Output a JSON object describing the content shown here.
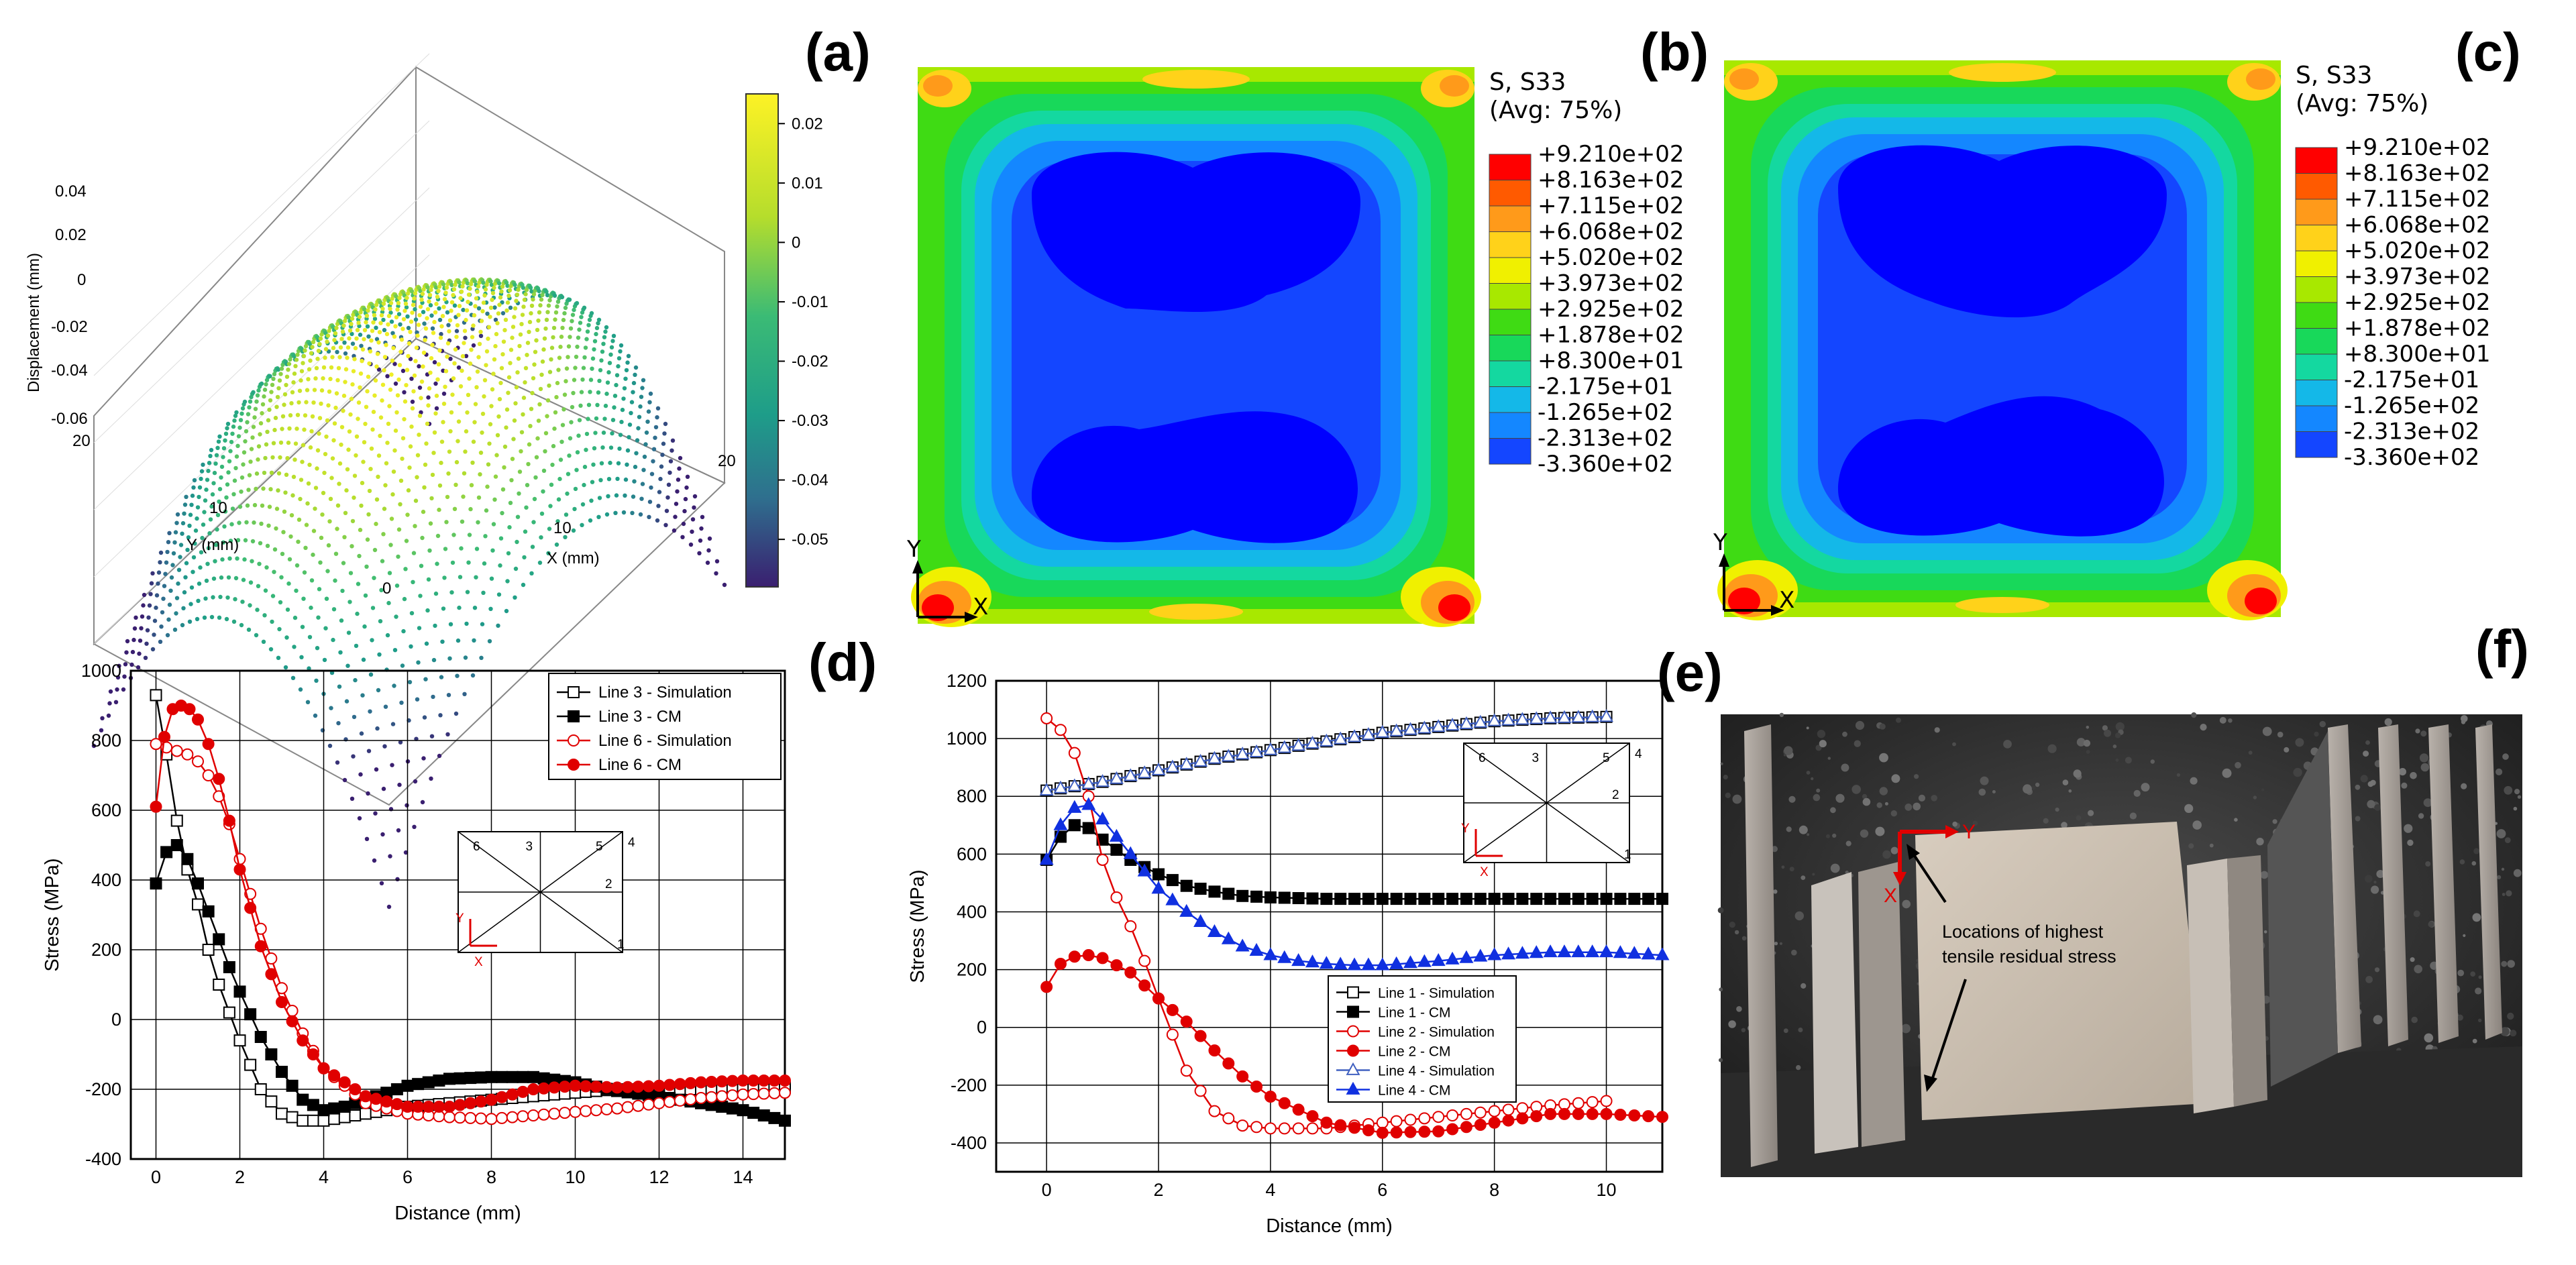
{
  "panel_labels": {
    "a": "(a)",
    "b": "(b)",
    "c": "(c)",
    "d": "(d)",
    "e": "(e)",
    "f": "(f)"
  },
  "chart_data": [
    {
      "id": "surface3d",
      "type": "scatter",
      "title": "",
      "zlabel": "Displacement (mm)",
      "xlabel": "X (mm)",
      "ylabel": "Y (mm)",
      "x_ticks": [
        "0",
        "10",
        "20"
      ],
      "y_ticks": [
        "0",
        "10",
        "20"
      ],
      "z_ticks": [
        "0.04",
        "0.02",
        "0",
        "-0.02",
        "-0.04",
        "-0.06"
      ],
      "zlim": [
        -0.06,
        0.04
      ],
      "colorbar_ticks": [
        "0.02",
        "0.01",
        "0",
        "-0.01",
        "-0.02",
        "-0.03",
        "-0.04",
        "-0.05"
      ],
      "colorbar_range": [
        -0.058,
        0.025
      ]
    },
    {
      "id": "contour-a",
      "type": "heatmap",
      "legend_title": [
        "S, S33",
        "(Avg: 75%)"
      ],
      "levels": [
        "+9.210e+02",
        "+8.163e+02",
        "+7.115e+02",
        "+6.068e+02",
        "+5.020e+02",
        "+3.973e+02",
        "+2.925e+02",
        "+1.878e+02",
        "+8.300e+01",
        "-2.175e+01",
        "-1.265e+02",
        "-2.313e+02",
        "-3.360e+02"
      ],
      "level_colors": [
        "#ff0000",
        "#ff5a00",
        "#ff9a1a",
        "#ffd21a",
        "#f0f000",
        "#a8e800",
        "#3fdb14",
        "#18d85a",
        "#14d8a0",
        "#14b8e8",
        "#1487ff",
        "#1446ff",
        "#0000ff"
      ],
      "axis_labels": {
        "x": "X",
        "y": "Y"
      }
    },
    {
      "id": "contour-b",
      "type": "heatmap",
      "legend_title": [
        "S, S33",
        "(Avg: 75%)"
      ],
      "levels": [
        "+9.210e+02",
        "+8.163e+02",
        "+7.115e+02",
        "+6.068e+02",
        "+5.020e+02",
        "+3.973e+02",
        "+2.925e+02",
        "+1.878e+02",
        "+8.300e+01",
        "-2.175e+01",
        "-1.265e+02",
        "-2.313e+02",
        "-3.360e+02"
      ],
      "level_colors": [
        "#ff0000",
        "#ff5a00",
        "#ff9a1a",
        "#ffd21a",
        "#f0f000",
        "#a8e800",
        "#3fdb14",
        "#18d85a",
        "#14d8a0",
        "#14b8e8",
        "#1487ff",
        "#1446ff",
        "#0000ff"
      ],
      "axis_labels": {
        "x": "X",
        "y": "Y"
      }
    },
    {
      "id": "line-chart-left",
      "type": "line",
      "xlabel": "Distance (mm)",
      "ylabel": "Stress (MPa)",
      "xlim": [
        -0.6,
        15
      ],
      "ylim": [
        -400,
        1000
      ],
      "x_ticks": [
        0,
        2,
        4,
        6,
        8,
        10,
        12,
        14
      ],
      "y_ticks": [
        -400,
        -200,
        0,
        200,
        400,
        600,
        800,
        1000
      ],
      "inset": {
        "lines": [
          "1",
          "2",
          "3",
          "4",
          "5",
          "6"
        ],
        "axes": {
          "x": "X",
          "y": "Y"
        }
      },
      "series": [
        {
          "name": "Line 3 - Simulation",
          "color": "#000000",
          "marker": "open-square",
          "x": [
            0,
            0.25,
            0.5,
            0.75,
            1,
            1.25,
            1.5,
            1.75,
            2,
            2.5,
            3,
            3.5,
            4,
            5,
            6,
            7,
            8,
            9,
            10,
            11,
            12,
            13,
            14,
            15
          ],
          "y": [
            930,
            760,
            570,
            430,
            330,
            200,
            100,
            20,
            -60,
            -200,
            -270,
            -290,
            -290,
            -270,
            -250,
            -240,
            -230,
            -220,
            -210,
            -200,
            -200,
            -200,
            -200,
            -195
          ]
        },
        {
          "name": "Line 3 - CM",
          "color": "#000000",
          "marker": "filled-square",
          "x": [
            0,
            0.25,
            0.5,
            0.75,
            1,
            1.25,
            1.5,
            1.75,
            2,
            2.5,
            3,
            3.5,
            4,
            4.5,
            5,
            6,
            7,
            8,
            9,
            10,
            11,
            12,
            13,
            14,
            15
          ],
          "y": [
            390,
            480,
            500,
            460,
            390,
            310,
            230,
            150,
            80,
            -50,
            -150,
            -230,
            -260,
            -250,
            -230,
            -190,
            -170,
            -165,
            -165,
            -180,
            -205,
            -220,
            -240,
            -260,
            -290
          ]
        },
        {
          "name": "Line 6 - Simulation",
          "color": "#e00000",
          "marker": "open-circle",
          "x": [
            0,
            0.25,
            0.5,
            0.75,
            1,
            1.25,
            1.5,
            1.75,
            2,
            2.5,
            3,
            3.5,
            4,
            5,
            6,
            7,
            8,
            9,
            10,
            11,
            12,
            13,
            14,
            15
          ],
          "y": [
            790,
            780,
            770,
            760,
            740,
            700,
            640,
            560,
            460,
            260,
            90,
            -40,
            -140,
            -240,
            -270,
            -280,
            -285,
            -275,
            -265,
            -255,
            -240,
            -225,
            -215,
            -210
          ]
        },
        {
          "name": "Line 6 - CM",
          "color": "#e00000",
          "marker": "filled-circle",
          "x": [
            0,
            0.2,
            0.4,
            0.6,
            0.8,
            1,
            1.25,
            1.5,
            1.75,
            2,
            2.5,
            3,
            3.5,
            4,
            5,
            6,
            7,
            8,
            9,
            10,
            11,
            12,
            13,
            14,
            15
          ],
          "y": [
            610,
            810,
            890,
            900,
            890,
            860,
            790,
            690,
            570,
            430,
            210,
            50,
            -60,
            -140,
            -220,
            -250,
            -250,
            -230,
            -200,
            -190,
            -195,
            -190,
            -180,
            -175,
            -175
          ]
        }
      ]
    },
    {
      "id": "line-chart-right",
      "type": "line",
      "xlabel": "Distance (mm)",
      "ylabel": "Stress (MPa)",
      "xlim": [
        -0.9,
        11
      ],
      "ylim": [
        -500,
        1200
      ],
      "x_ticks": [
        0,
        2,
        4,
        6,
        8,
        10
      ],
      "y_ticks": [
        -400,
        -200,
        0,
        200,
        400,
        600,
        800,
        1000,
        1200
      ],
      "inset": {
        "lines": [
          "1",
          "2",
          "3",
          "4",
          "5",
          "6"
        ],
        "axes": {
          "x": "X",
          "y": "Y"
        }
      },
      "series": [
        {
          "name": "Line 1 - Simulation",
          "color": "#000000",
          "marker": "open-square",
          "x": [
            0,
            1,
            2,
            3,
            4,
            5,
            6,
            7,
            8,
            9,
            10
          ],
          "y": [
            820,
            850,
            890,
            930,
            960,
            990,
            1020,
            1040,
            1060,
            1070,
            1075
          ]
        },
        {
          "name": "Line 1 - CM",
          "color": "#000000",
          "marker": "filled-square",
          "x": [
            0,
            0.25,
            0.5,
            0.75,
            1,
            1.5,
            2,
            2.5,
            3,
            3.5,
            4,
            5,
            6,
            7,
            8,
            9,
            10,
            11
          ],
          "y": [
            580,
            660,
            700,
            690,
            650,
            580,
            530,
            490,
            470,
            455,
            450,
            445,
            445,
            445,
            445,
            445,
            445,
            445
          ]
        },
        {
          "name": "Line 2 - Simulation",
          "color": "#e00000",
          "marker": "open-circle",
          "x": [
            0,
            0.25,
            0.5,
            0.75,
            1,
            1.25,
            1.5,
            1.75,
            2,
            2.5,
            3,
            3.5,
            4,
            5,
            6,
            7,
            8,
            9,
            10
          ],
          "y": [
            1070,
            1030,
            950,
            800,
            580,
            450,
            350,
            230,
            100,
            -150,
            -290,
            -340,
            -350,
            -350,
            -330,
            -310,
            -290,
            -270,
            -255
          ]
        },
        {
          "name": "Line 2 - CM",
          "color": "#e00000",
          "marker": "filled-circle",
          "x": [
            0,
            0.25,
            0.5,
            0.75,
            1,
            1.5,
            2,
            2.5,
            3,
            3.5,
            4,
            5,
            6,
            7,
            8,
            9,
            10,
            11
          ],
          "y": [
            140,
            220,
            245,
            250,
            240,
            190,
            100,
            20,
            -80,
            -170,
            -240,
            -330,
            -365,
            -360,
            -330,
            -300,
            -300,
            -310
          ]
        },
        {
          "name": "Line 4 - Simulation",
          "color": "#4060c0",
          "marker": "open-triangle",
          "x": [
            0,
            1,
            2,
            3,
            4,
            5,
            6,
            7,
            8,
            9,
            10
          ],
          "y": [
            820,
            850,
            890,
            930,
            960,
            990,
            1020,
            1040,
            1060,
            1070,
            1075
          ]
        },
        {
          "name": "Line 4 - CM",
          "color": "#1030e0",
          "marker": "filled-triangle",
          "x": [
            0,
            0.25,
            0.5,
            0.75,
            1,
            1.5,
            2,
            2.5,
            3,
            3.5,
            4,
            4.5,
            5,
            5.5,
            6,
            7,
            8,
            9,
            10,
            11
          ],
          "y": [
            580,
            700,
            760,
            770,
            720,
            600,
            480,
            400,
            330,
            280,
            250,
            230,
            220,
            215,
            215,
            230,
            250,
            260,
            260,
            250
          ]
        }
      ]
    }
  ],
  "photo": {
    "annotation": [
      "Locations of highest",
      "tensile residual stress"
    ],
    "axes": {
      "x": "X",
      "y": "Y"
    }
  }
}
